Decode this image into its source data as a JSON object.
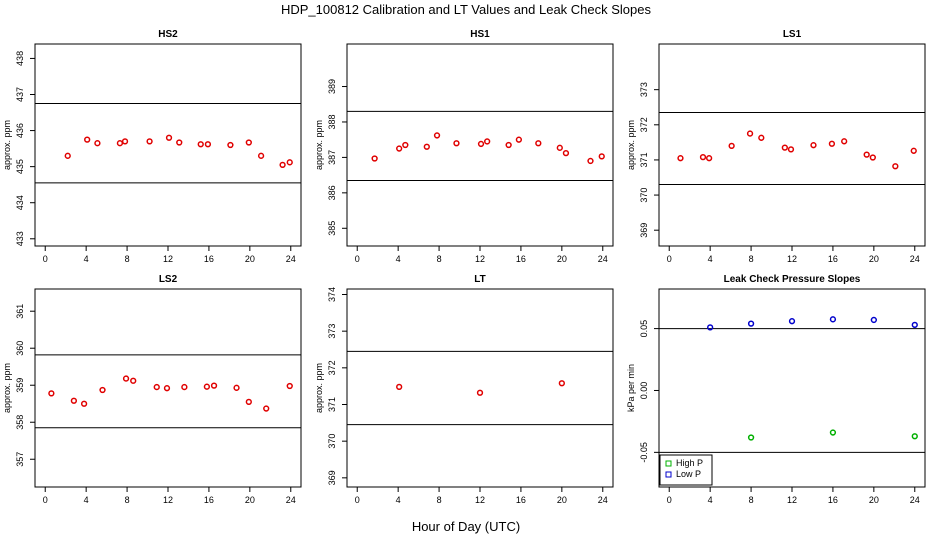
{
  "figure": {
    "title": "HDP_100812  Calibration and LT Values and Leak Check Slopes",
    "xlabel": "Hour of Day (UTC)"
  },
  "colors": {
    "red_points": "#e00000",
    "high_p": "#00b000",
    "low_p": "#0000cc",
    "axis": "#000000"
  },
  "chart_data": [
    {
      "type": "scatter",
      "title": "HS2",
      "ylabel": "approx. ppm",
      "xlim": [
        -1,
        25
      ],
      "xticks": [
        0,
        4,
        8,
        12,
        16,
        20,
        24
      ],
      "ylim": [
        432.8,
        438.4
      ],
      "yticks": [
        433,
        434,
        435,
        436,
        437,
        438
      ],
      "hlines": [
        434.55,
        436.75
      ],
      "series": [
        {
          "name": "HS2",
          "color": "#e00000",
          "x": [
            2.2,
            4.1,
            5.1,
            7.3,
            7.8,
            10.2,
            12.1,
            13.1,
            15.2,
            15.9,
            18.1,
            19.9,
            21.1,
            23.2,
            23.9
          ],
          "y": [
            435.3,
            435.75,
            435.65,
            435.65,
            435.7,
            435.7,
            435.8,
            435.67,
            435.62,
            435.62,
            435.6,
            435.67,
            435.3,
            435.05,
            435.12
          ]
        }
      ]
    },
    {
      "type": "scatter",
      "title": "HS1",
      "ylabel": "approx. ppm",
      "xlim": [
        -1,
        25
      ],
      "xticks": [
        0,
        4,
        8,
        12,
        16,
        20,
        24
      ],
      "ylim": [
        384.5,
        390.2
      ],
      "yticks": [
        385,
        386,
        387,
        388,
        389
      ],
      "hlines": [
        386.35,
        388.3
      ],
      "series": [
        {
          "name": "HS1",
          "color": "#e00000",
          "x": [
            1.7,
            4.1,
            4.7,
            6.8,
            7.8,
            9.7,
            12.1,
            12.7,
            14.8,
            15.8,
            17.7,
            19.8,
            20.4,
            22.8,
            23.9
          ],
          "y": [
            386.97,
            387.25,
            387.35,
            387.3,
            387.62,
            387.4,
            387.38,
            387.45,
            387.35,
            387.5,
            387.4,
            387.27,
            387.12,
            386.9,
            387.03
          ]
        }
      ]
    },
    {
      "type": "scatter",
      "title": "LS1",
      "ylabel": "approx. ppm",
      "xlim": [
        -1,
        25
      ],
      "xticks": [
        0,
        4,
        8,
        12,
        16,
        20,
        24
      ],
      "ylim": [
        368.55,
        374.3
      ],
      "yticks": [
        369,
        370,
        371,
        372,
        373
      ],
      "hlines": [
        370.3,
        372.35
      ],
      "series": [
        {
          "name": "LS1",
          "color": "#e00000",
          "x": [
            1.1,
            3.3,
            3.9,
            6.1,
            7.9,
            9.0,
            11.3,
            11.9,
            14.1,
            15.9,
            17.1,
            19.3,
            19.9,
            22.1,
            23.9
          ],
          "y": [
            371.05,
            371.08,
            371.05,
            371.4,
            371.75,
            371.63,
            371.35,
            371.3,
            371.42,
            371.46,
            371.53,
            371.15,
            371.07,
            370.82,
            371.26
          ]
        }
      ]
    },
    {
      "type": "scatter",
      "title": "LS2",
      "ylabel": "approx. ppm",
      "xlim": [
        -1,
        25
      ],
      "xticks": [
        0,
        4,
        8,
        12,
        16,
        20,
        24
      ],
      "ylim": [
        356.25,
        361.6
      ],
      "yticks": [
        357,
        358,
        359,
        360,
        361
      ],
      "hlines": [
        357.85,
        359.82
      ],
      "series": [
        {
          "name": "LS2",
          "color": "#e00000",
          "x": [
            0.6,
            2.8,
            3.8,
            5.6,
            7.9,
            8.6,
            10.9,
            11.9,
            13.6,
            15.8,
            16.5,
            18.7,
            19.9,
            21.6,
            23.9
          ],
          "y": [
            358.78,
            358.58,
            358.5,
            358.87,
            359.18,
            359.12,
            358.95,
            358.92,
            358.95,
            358.96,
            358.99,
            358.93,
            358.55,
            358.37,
            358.98
          ]
        }
      ]
    },
    {
      "type": "scatter",
      "title": "LT",
      "ylabel": "approx. ppm",
      "xlim": [
        -1,
        25
      ],
      "xticks": [
        0,
        4,
        8,
        12,
        16,
        20,
        24
      ],
      "ylim": [
        368.75,
        374.15
      ],
      "yticks": [
        369,
        370,
        371,
        372,
        373,
        374
      ],
      "hlines": [
        370.45,
        372.45
      ],
      "series": [
        {
          "name": "LT",
          "color": "#e00000",
          "x": [
            4.1,
            12.0,
            20.0
          ],
          "y": [
            371.48,
            371.32,
            371.58
          ]
        }
      ]
    },
    {
      "type": "scatter",
      "title": "Leak Check Pressure Slopes",
      "ylabel": "kPa per min",
      "xlim": [
        -1,
        25
      ],
      "xticks": [
        0,
        4,
        8,
        12,
        16,
        20,
        24
      ],
      "ylim": [
        -0.078,
        0.082
      ],
      "yticks": [
        -0.05,
        0.0,
        0.05
      ],
      "ytick_labels": [
        "-0.05",
        "0.00",
        "0.05"
      ],
      "hlines": [
        0.05,
        -0.05
      ],
      "legend": {
        "position": "bottom-left",
        "entries": [
          "High P",
          "Low P"
        ]
      },
      "series": [
        {
          "name": "High P",
          "color": "#00b000",
          "marker": "circle",
          "x": [
            8,
            16,
            24
          ],
          "y": [
            -0.038,
            -0.034,
            -0.037
          ]
        },
        {
          "name": "Low P",
          "color": "#0000cc",
          "marker": "circle",
          "x": [
            4,
            8,
            12,
            16,
            20,
            24
          ],
          "y": [
            0.051,
            0.054,
            0.056,
            0.0575,
            0.057,
            0.053
          ]
        }
      ]
    }
  ]
}
